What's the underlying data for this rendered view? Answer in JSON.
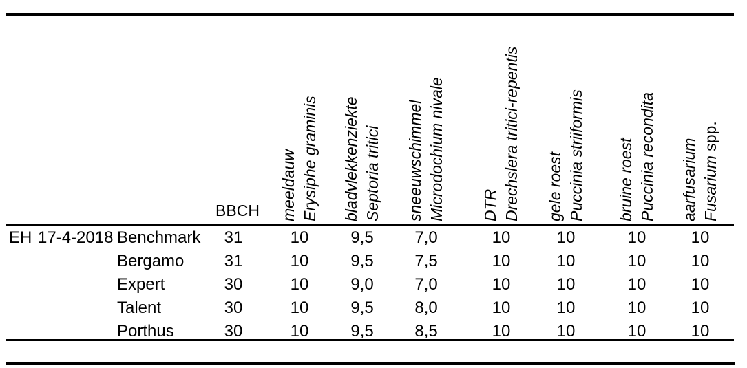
{
  "table": {
    "group_label": "EH",
    "date": "17-4-2018",
    "bbch_label": "BBCH",
    "columns": [
      {
        "dutch": "meeldauw",
        "latin": "Erysiphe graminis",
        "suffix": ""
      },
      {
        "dutch": "bladvlekkenziekte",
        "latin": "Septoria tritici",
        "suffix": ""
      },
      {
        "dutch": "sneeuwschimmel",
        "latin": "Microdochium nivale",
        "suffix": ""
      },
      {
        "dutch": "DTR",
        "latin": "Drechslera tritici-repentis",
        "suffix": ""
      },
      {
        "dutch": "gele roest",
        "latin": "Puccinia striiformis",
        "suffix": ""
      },
      {
        "dutch": "bruine roest",
        "latin": "Puccinia recondita",
        "suffix": ""
      },
      {
        "dutch": "aarfusarium",
        "latin": "Fusarium",
        "suffix": " spp."
      }
    ],
    "rows": [
      {
        "variety": "Benchmark",
        "bbch": "31",
        "values": [
          "10",
          "9,5",
          "7,0",
          "10",
          "10",
          "10",
          "10"
        ]
      },
      {
        "variety": "Bergamo",
        "bbch": "31",
        "values": [
          "10",
          "9,5",
          "7,5",
          "10",
          "10",
          "10",
          "10"
        ]
      },
      {
        "variety": "Expert",
        "bbch": "30",
        "values": [
          "10",
          "9,0",
          "7,0",
          "10",
          "10",
          "10",
          "10"
        ]
      },
      {
        "variety": "Talent",
        "bbch": "30",
        "values": [
          "10",
          "9,5",
          "8,0",
          "10",
          "10",
          "10",
          "10"
        ]
      },
      {
        "variety": "Porthus",
        "bbch": "30",
        "values": [
          "10",
          "9,5",
          "8,5",
          "10",
          "10",
          "10",
          "10"
        ]
      }
    ]
  }
}
